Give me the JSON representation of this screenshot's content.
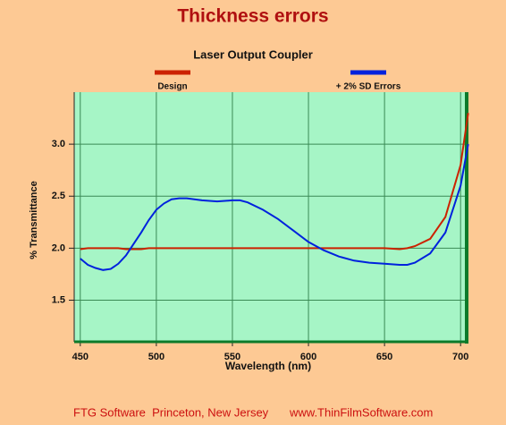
{
  "chart_data": {
    "type": "line",
    "title": "Thickness errors",
    "subtitle": "Laser Output Coupler",
    "xlabel": "Wavelength (nm)",
    "ylabel": "% Transmittance",
    "x": [
      450,
      455,
      460,
      465,
      470,
      475,
      480,
      485,
      490,
      495,
      500,
      505,
      510,
      515,
      520,
      525,
      530,
      540,
      550,
      555,
      560,
      570,
      580,
      590,
      600,
      610,
      620,
      630,
      640,
      650,
      660,
      665,
      670,
      680,
      690,
      700,
      705
    ],
    "series": [
      {
        "name": "Design",
        "color": "#cc2200",
        "values": [
          1.99,
          2.0,
          2.0,
          2.0,
          2.0,
          2.0,
          1.99,
          1.99,
          1.99,
          2.0,
          2.0,
          2.0,
          2.0,
          2.0,
          2.0,
          2.0,
          2.0,
          2.0,
          2.0,
          2.0,
          2.0,
          2.0,
          2.0,
          2.0,
          2.0,
          2.0,
          2.0,
          2.0,
          2.0,
          2.0,
          1.99,
          2.0,
          2.02,
          2.09,
          2.3,
          2.8,
          3.3
        ]
      },
      {
        "name": "+ 2% SD Errors",
        "color": "#0022dd",
        "values": [
          1.9,
          1.84,
          1.81,
          1.79,
          1.8,
          1.85,
          1.93,
          2.04,
          2.15,
          2.27,
          2.37,
          2.43,
          2.47,
          2.48,
          2.48,
          2.47,
          2.46,
          2.45,
          2.46,
          2.46,
          2.44,
          2.37,
          2.28,
          2.17,
          2.06,
          1.98,
          1.92,
          1.88,
          1.86,
          1.85,
          1.84,
          1.84,
          1.86,
          1.95,
          2.15,
          2.6,
          3.0
        ]
      }
    ],
    "xlim": [
      446,
      704
    ],
    "ylim": [
      1.1,
      3.5
    ],
    "xticks": [
      450,
      500,
      550,
      600,
      650,
      700
    ],
    "yticks": [
      1.5,
      {
        "value": 2,
        "label": "2.0"
      },
      2.5,
      {
        "value": 3,
        "label": "3.0"
      }
    ],
    "grid": true,
    "plot_background": "#a6f5c6"
  },
  "footer": {
    "left": "FTG Software  Princeton, New Jersey",
    "right": "www.ThinFilmSoftware.com"
  }
}
